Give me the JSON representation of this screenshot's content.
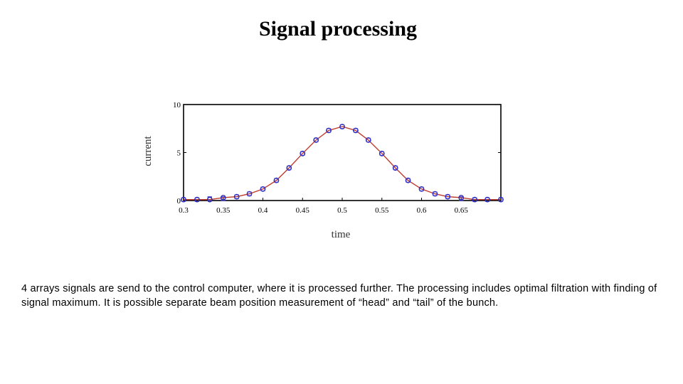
{
  "slide": {
    "title": "Signal processing",
    "body": "4 arrays signals are send to the control computer, where it is processed further. The processing includes optimal filtration with finding of signal maximum. It is possible separate beam position measurement of “head” and “tail” of the bunch."
  },
  "chart_data": {
    "type": "line",
    "title": "",
    "xlabel": "time",
    "ylabel": "current",
    "xlim": [
      0.3,
      0.7
    ],
    "ylim": [
      0,
      10
    ],
    "x_ticks": [
      "0.3",
      "0.35",
      "0.4",
      "0.45",
      "0.5",
      "0.55",
      "0.6",
      "0.65"
    ],
    "y_ticks": [
      "0",
      "5",
      "10"
    ],
    "grid": false,
    "colors": {
      "curve": "#c0392b",
      "circles": "#1a1aa6",
      "squares": "#3b3bd0",
      "axis": "#000000"
    },
    "series": [
      {
        "marker": "circle",
        "x": [
          0.3,
          0.317,
          0.333,
          0.35,
          0.367,
          0.383,
          0.4,
          0.417,
          0.433,
          0.45,
          0.467,
          0.483,
          0.5,
          0.517,
          0.533,
          0.55,
          0.567,
          0.583,
          0.6,
          0.617,
          0.633,
          0.65,
          0.667,
          0.683,
          0.7
        ],
        "y": [
          0.1,
          0.1,
          0.1,
          0.3,
          0.4,
          0.7,
          1.2,
          2.1,
          3.4,
          4.9,
          6.3,
          7.3,
          7.7,
          7.3,
          6.3,
          4.9,
          3.4,
          2.1,
          1.2,
          0.7,
          0.4,
          0.3,
          0.1,
          0.1,
          0.1
        ]
      },
      {
        "marker": "square",
        "x": [
          0.3,
          0.317,
          0.333,
          0.35,
          0.367,
          0.383,
          0.4,
          0.417,
          0.433,
          0.45,
          0.467,
          0.483,
          0.5,
          0.517,
          0.533,
          0.55,
          0.567,
          0.583,
          0.6,
          0.617,
          0.633,
          0.65,
          0.667,
          0.683,
          0.7
        ],
        "y": [
          0.1,
          0.1,
          0.2,
          0.2,
          0.4,
          0.7,
          1.2,
          2.1,
          3.4,
          4.9,
          6.3,
          7.3,
          7.7,
          7.3,
          6.3,
          4.9,
          3.4,
          2.1,
          1.2,
          0.7,
          0.4,
          0.2,
          0.1,
          0.1,
          0.1
        ]
      }
    ]
  }
}
